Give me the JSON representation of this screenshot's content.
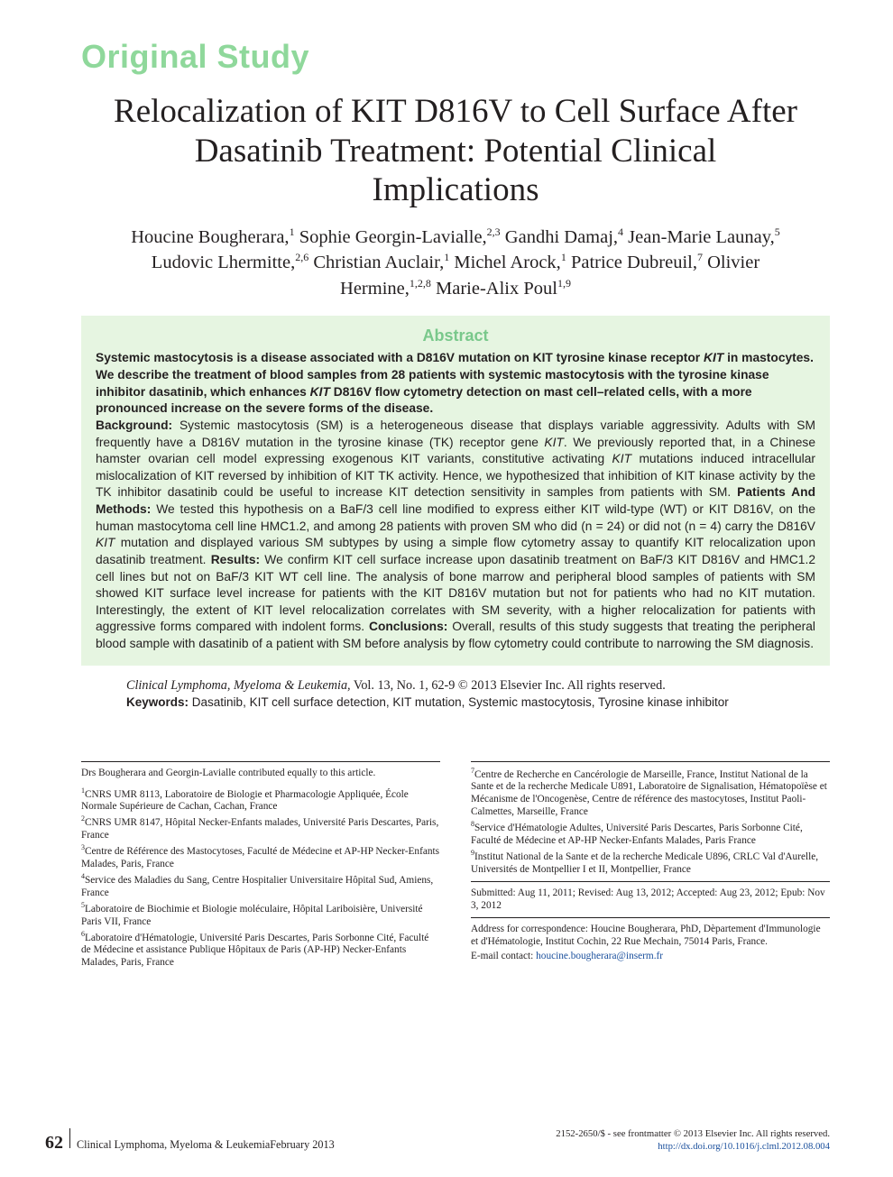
{
  "kicker": "Original Study",
  "title": "Relocalization of KIT D816V to Cell Surface After Dasatinib Treatment: Potential Clinical Implications",
  "authors_html": "Houcine Bougherara,<sup>1</sup> Sophie Georgin-Lavialle,<sup>2,3</sup> Gandhi Damaj,<sup>4</sup> Jean-Marie Launay,<sup>5</sup> Ludovic Lhermitte,<sup>2,6</sup> Christian Auclair,<sup>1</sup> Michel Arock,<sup>1</sup> Patrice Dubreuil,<sup>7</sup> Olivier Hermine,<sup>1,2,8</sup> Marie-Alix Poul<sup>1,9</sup>",
  "abstract": {
    "heading": "Abstract",
    "lead": "Systemic mastocytosis is a disease associated with a D816V mutation on KIT tyrosine kinase receptor <em>KIT</em> in mastocytes. We describe the treatment of blood samples from 28 patients with systemic mastocytosis with the tyrosine kinase inhibitor dasatinib, which enhances <em>KIT</em> D816V flow cytometry detection on mast cell–related cells, with a more pronounced increase on the severe forms of the disease.",
    "body_html": "<b>Background:</b> Systemic mastocytosis (SM) is a heterogeneous disease that displays variable aggressivity. Adults with SM frequently have a D816V mutation in the tyrosine kinase (TK) receptor gene <em>KIT</em>. We previously reported that, in a Chinese hamster ovarian cell model expressing exogenous KIT variants, constitutive activating <em>KIT</em> mutations induced intracellular mislocalization of KIT reversed by inhibition of KIT TK activity. Hence, we hypothesized that inhibition of KIT kinase activity by the TK inhibitor dasatinib could be useful to increase KIT detection sensitivity in samples from patients with SM. <b>Patients And Methods:</b> We tested this hypothesis on a BaF/3 cell line modified to express either KIT wild-type (WT) or KIT D816V, on the human mastocytoma cell line HMC1.2, and among 28 patients with proven SM who did (n = 24) or did not (n = 4) carry the D816V <em>KIT</em> mutation and displayed various SM subtypes by using a simple flow cytometry assay to quantify KIT relocalization upon dasatinib treatment. <b>Results:</b> We confirm KIT cell surface increase upon dasatinib treatment on BaF/3 KIT D816V and HMC1.2 cell lines but not on BaF/3 KIT WT cell line. The analysis of bone marrow and peripheral blood samples of patients with SM showed KIT surface level increase for patients with the KIT D816V mutation but not for patients who had no KIT mutation. Interestingly, the extent of KIT level relocalization correlates with SM severity, with a higher relocalization for patients with aggressive forms compared with indolent forms. <b>Conclusions:</b> Overall, results of this study suggests that treating the peripheral blood sample with dasatinib of a patient with SM before analysis by flow cytometry could contribute to narrowing the SM diagnosis."
  },
  "citation": {
    "journal": "Clinical Lymphoma, Myeloma & Leukemia,",
    "vol": " Vol. 13, No. 1, 62-9 © 2013 Elsevier Inc. All rights reserved."
  },
  "keywords_label": "Keywords:",
  "keywords_text": " Dasatinib, KIT cell surface detection, KIT mutation, Systemic mastocytosis, Tyrosine kinase inhibitor",
  "affiliations": {
    "left": {
      "contrib": "Drs Bougherara and Georgin-Lavialle contributed equally to this article.",
      "items": [
        "<sup>1</sup>CNRS UMR 8113, Laboratoire de Biologie et Pharmacologie Appliquée, École Normale Supérieure de Cachan, Cachan, France",
        "<sup>2</sup>CNRS UMR 8147, Hôpital Necker-Enfants malades, Université Paris Descartes, Paris, France",
        "<sup>3</sup>Centre de Référence des Mastocytoses, Faculté de Médecine et AP-HP Necker-Enfants Malades, Paris, France",
        "<sup>4</sup>Service des Maladies du Sang, Centre Hospitalier Universitaire Hôpital Sud, Amiens, France",
        "<sup>5</sup>Laboratoire de Biochimie et Biologie moléculaire, Hôpital Lariboisière, Université Paris VII, France",
        "<sup>6</sup>Laboratoire d'Hématologie, Université Paris Descartes, Paris Sorbonne Cité, Faculté de Médecine et assistance Publique Hôpitaux de Paris (AP-HP) Necker-Enfants Malades, Paris, France"
      ]
    },
    "right": {
      "items": [
        "<sup>7</sup>Centre de Recherche en Cancérologie de Marseille, France, Institut National de la Sante et de la recherche Medicale U891, Laboratoire de Signalisation, Hématopoïèse et Mécanisme de l'Oncogenèse, Centre de référence des mastocytoses, Institut Paoli-Calmettes, Marseille, France",
        "<sup>8</sup>Service d'Hématologie Adultes, Université Paris Descartes, Paris Sorbonne Cité, Faculté de Médecine et AP-HP Necker-Enfants Malades, Paris France",
        "<sup>9</sup>Institut National de la Sante et de la recherche Medicale U896, CRLC Val d'Aurelle, Universités de Montpellier I et II, Montpellier, France"
      ],
      "dates": "Submitted: Aug 11, 2011; Revised: Aug 13, 2012; Accepted: Aug 23, 2012; Epub: Nov 3, 2012",
      "correspondence": "Address for correspondence: Houcine Bougherara, PhD, Dèpartement d'Immunologie et d'Hématologie, Institut Cochin, 22 Rue Mechain, 75014 Paris, France.",
      "email_label": "E-mail contact: ",
      "email": "houcine.bougherara@inserm.fr"
    }
  },
  "footer": {
    "page_number": "62",
    "journal": "Clinical Lymphoma, Myeloma & Leukemia",
    "date": "  February 2013",
    "copyright": "2152-2650/$ - see frontmatter © 2013 Elsevier Inc. All rights reserved.",
    "doi": "http://dx.doi.org/10.1016/j.clml.2012.08.004"
  },
  "colors": {
    "green": "#8fd89b",
    "abstract_bg": "#e6f5e1",
    "link": "#1a4f9c"
  }
}
